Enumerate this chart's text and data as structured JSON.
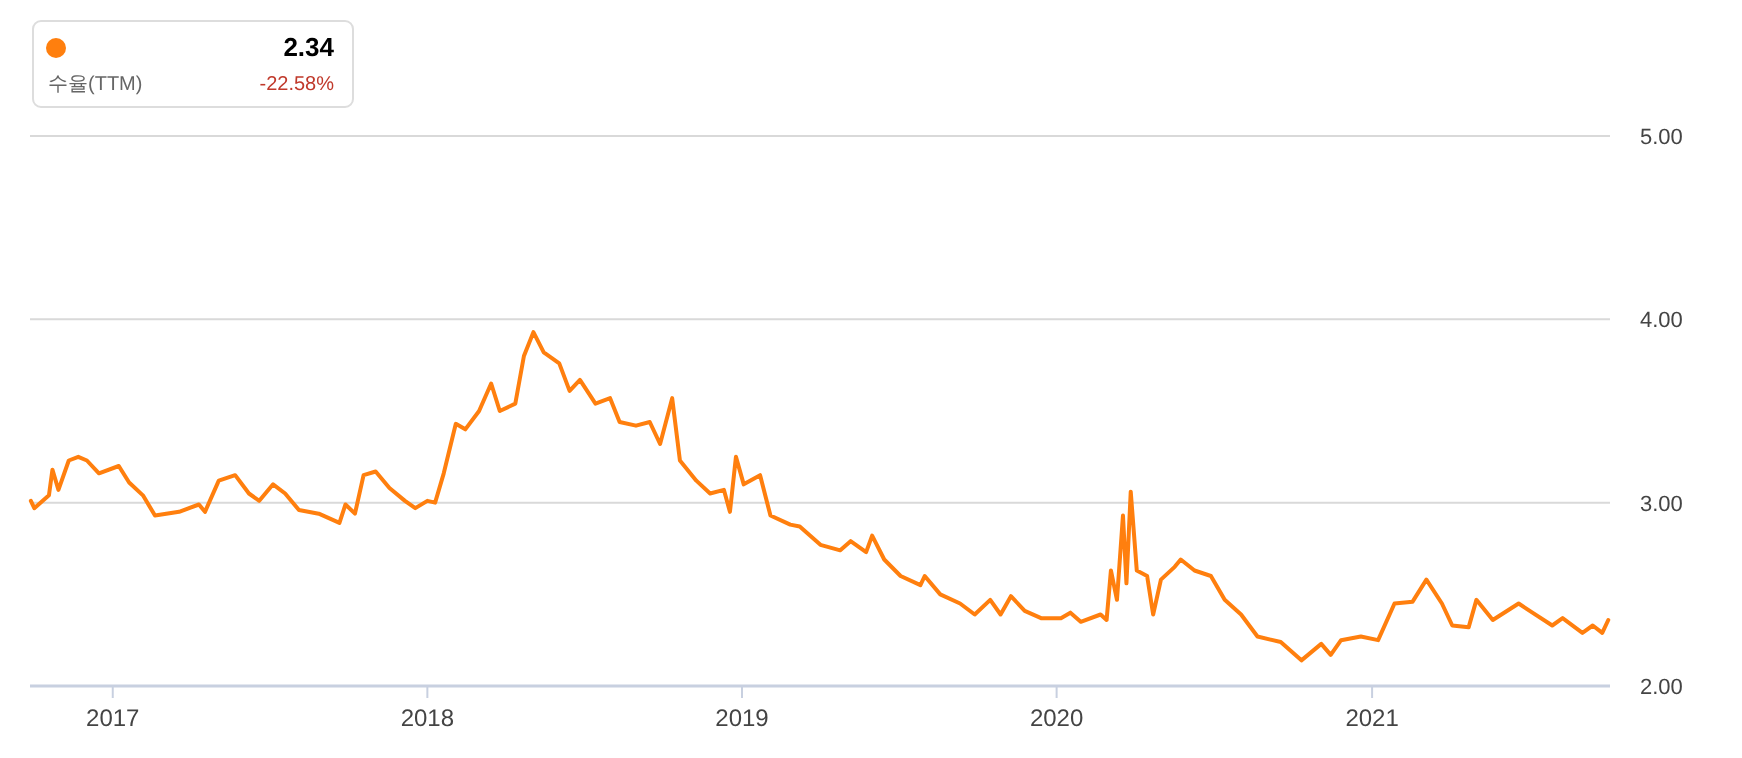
{
  "chart_data": {
    "type": "line",
    "x": [
      "2016-09-28",
      "2016-10-02",
      "2016-10-19",
      "2016-10-23",
      "2016-10-30",
      "2016-11-11",
      "2016-11-22",
      "2016-12-02",
      "2016-12-16",
      "2017-01-08",
      "2017-01-20",
      "2017-02-05",
      "2017-02-19",
      "2017-03-19",
      "2017-04-11",
      "2017-04-18",
      "2017-05-04",
      "2017-05-23",
      "2017-06-08",
      "2017-06-20",
      "2017-07-06",
      "2017-07-20",
      "2017-08-05",
      "2017-08-28",
      "2017-09-21",
      "2017-09-28",
      "2017-10-09",
      "2017-10-19",
      "2017-11-02",
      "2017-11-18",
      "2017-12-06",
      "2017-12-18",
      "2018-01-01",
      "2018-01-10",
      "2018-01-20",
      "2018-02-03",
      "2018-02-14",
      "2018-03-02",
      "2018-03-16",
      "2018-03-26",
      "2018-04-13",
      "2018-04-23",
      "2018-05-04",
      "2018-05-16",
      "2018-06-03",
      "2018-06-15",
      "2018-06-27",
      "2018-07-15",
      "2018-08-01",
      "2018-08-12",
      "2018-08-31",
      "2018-09-16",
      "2018-09-28",
      "2018-10-12",
      "2018-10-21",
      "2018-11-09",
      "2018-11-25",
      "2018-12-11",
      "2018-12-18",
      "2018-12-25",
      "2019-01-03",
      "2019-01-22",
      "2019-02-03",
      "2019-02-26",
      "2019-03-09",
      "2019-04-02",
      "2019-04-25",
      "2019-05-07",
      "2019-05-25",
      "2019-06-01",
      "2019-06-15",
      "2019-07-04",
      "2019-07-27",
      "2019-08-01",
      "2019-08-19",
      "2019-09-11",
      "2019-09-28",
      "2019-10-16",
      "2019-10-28",
      "2019-11-09",
      "2019-11-25",
      "2019-12-14",
      "2020-01-06",
      "2020-01-17",
      "2020-01-29",
      "2020-02-21",
      "2020-02-28",
      "2020-03-04",
      "2020-03-11",
      "2020-03-18",
      "2020-03-22",
      "2020-03-27",
      "2020-04-03",
      "2020-04-15",
      "2020-04-22",
      "2020-05-01",
      "2020-05-17",
      "2020-05-24",
      "2020-06-09",
      "2020-06-28",
      "2020-07-14",
      "2020-08-02",
      "2020-08-21",
      "2020-09-17",
      "2020-10-11",
      "2020-11-03",
      "2020-11-14",
      "2020-11-26",
      "2020-12-19",
      "2021-01-08",
      "2021-01-27",
      "2021-02-17",
      "2021-03-05",
      "2021-03-23",
      "2021-04-04",
      "2021-04-23",
      "2021-05-02",
      "2021-05-21",
      "2021-06-20",
      "2021-07-06",
      "2021-07-29",
      "2021-08-10",
      "2021-09-02",
      "2021-09-14",
      "2021-09-25",
      "2021-10-02"
    ],
    "series": [
      {
        "color": "#ff7f0e",
        "values": [
          3.01,
          2.97,
          3.04,
          3.18,
          3.07,
          3.23,
          3.25,
          3.23,
          3.16,
          3.2,
          3.11,
          3.04,
          2.93,
          2.95,
          2.99,
          2.95,
          3.12,
          3.15,
          3.05,
          3.01,
          3.1,
          3.05,
          2.96,
          2.94,
          2.89,
          2.99,
          2.94,
          3.15,
          3.17,
          3.08,
          3.01,
          2.97,
          3.01,
          3.0,
          3.16,
          3.43,
          3.4,
          3.5,
          3.65,
          3.5,
          3.54,
          3.8,
          3.93,
          3.82,
          3.76,
          3.61,
          3.67,
          3.54,
          3.57,
          3.44,
          3.42,
          3.44,
          3.32,
          3.57,
          3.23,
          3.12,
          3.05,
          3.07,
          2.95,
          3.25,
          3.1,
          3.15,
          2.93,
          2.88,
          2.87,
          2.77,
          2.74,
          2.79,
          2.73,
          2.82,
          2.69,
          2.6,
          2.55,
          2.6,
          2.5,
          2.45,
          2.39,
          2.47,
          2.39,
          2.49,
          2.41,
          2.37,
          2.37,
          2.4,
          2.35,
          2.39,
          2.36,
          2.63,
          2.47,
          2.93,
          2.56,
          3.06,
          2.63,
          2.6,
          2.39,
          2.58,
          2.65,
          2.69,
          2.63,
          2.6,
          2.47,
          2.39,
          2.27,
          2.24,
          2.14,
          2.23,
          2.17,
          2.25,
          2.27,
          2.25,
          2.45,
          2.46,
          2.58,
          2.45,
          2.33,
          2.32,
          2.47,
          2.36,
          2.45,
          2.4,
          2.33,
          2.37,
          2.29,
          2.33,
          2.29,
          2.36
        ]
      }
    ],
    "xlim": [
      "2016-09-27",
      "2021-10-04"
    ],
    "xticks": [
      "2017",
      "2018",
      "2019",
      "2020",
      "2021"
    ],
    "ylim": [
      2,
      5
    ],
    "yticks": [
      {
        "value": 2,
        "label": "2.00"
      },
      {
        "value": 3,
        "label": "3.00"
      },
      {
        "value": 4,
        "label": "4.00"
      },
      {
        "value": 5,
        "label": "5.00"
      }
    ],
    "grid": "y",
    "annotations": [
      "2.34",
      "수율(TTM)",
      "-22.58%"
    ]
  }
}
